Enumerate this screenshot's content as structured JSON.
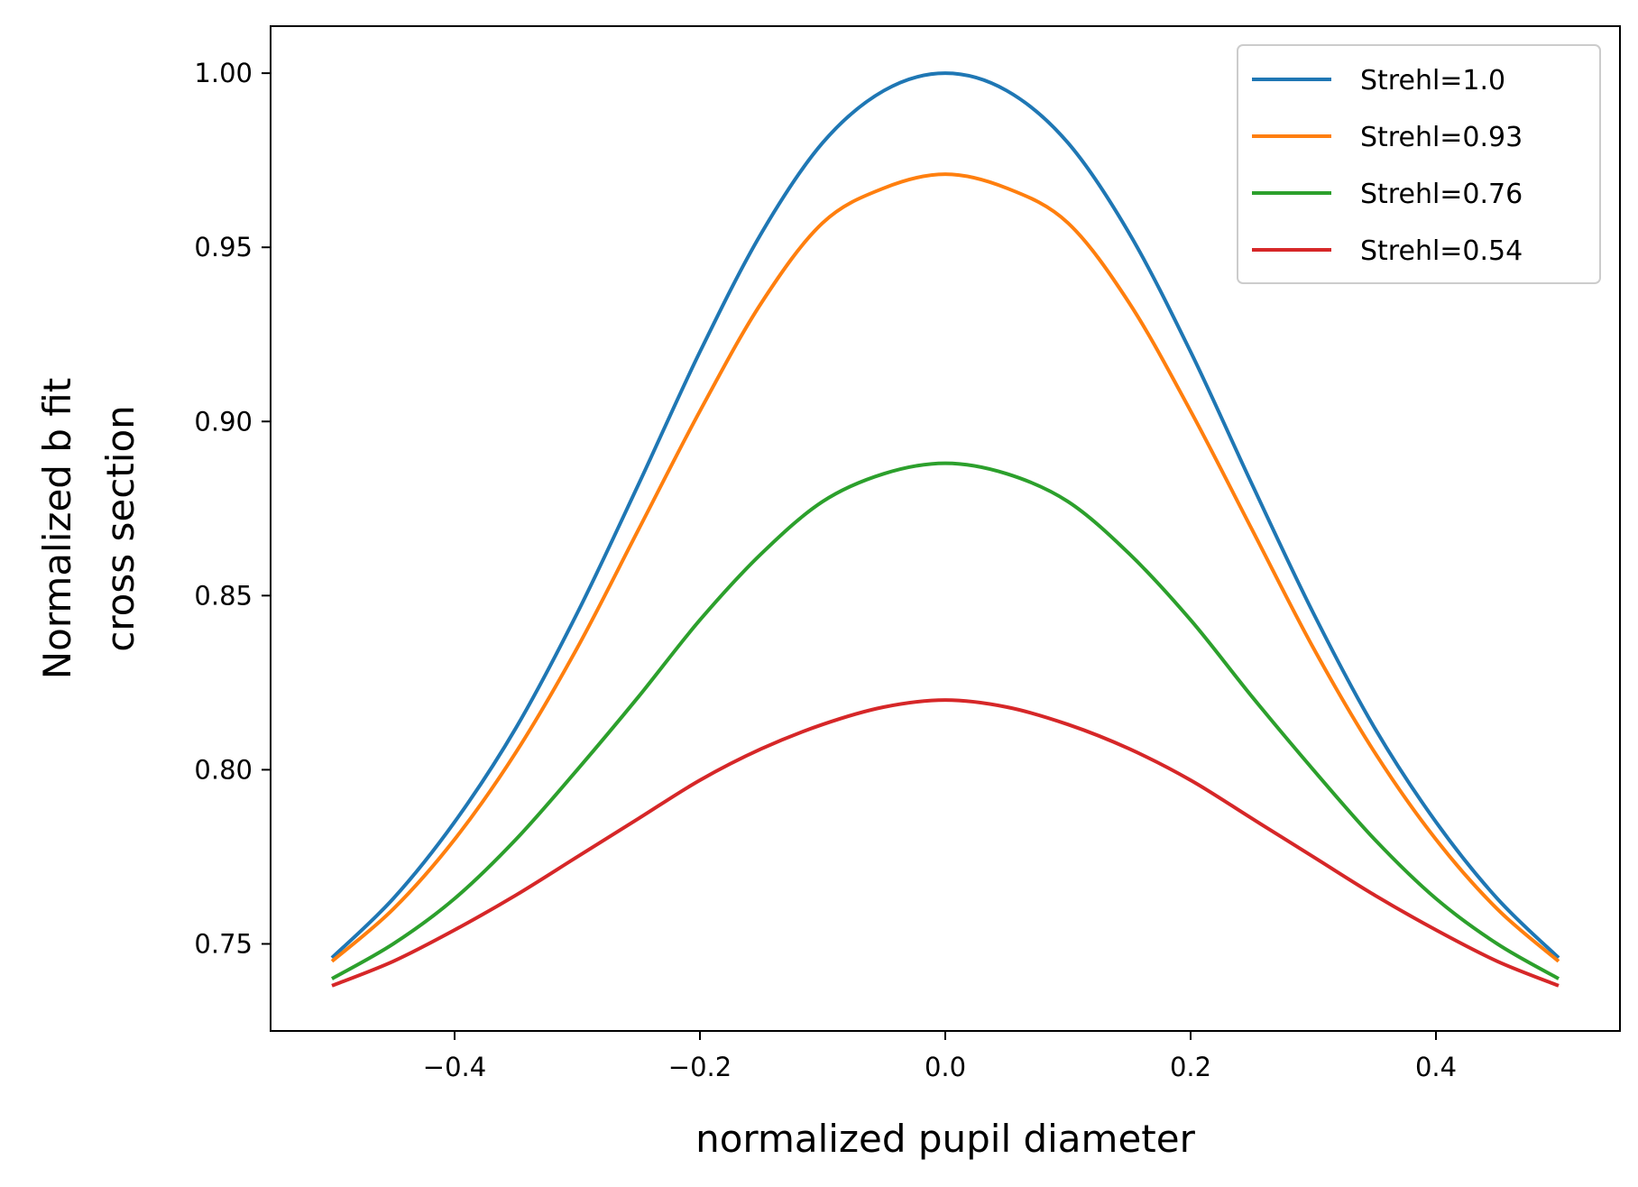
{
  "chart_data": {
    "type": "line",
    "title": "",
    "xlabel": "normalized pupil diameter",
    "ylabel_lines": [
      "Normalized b fit",
      "cross section"
    ],
    "xlim": [
      -0.55,
      0.55
    ],
    "ylim": [
      0.725,
      1.0135
    ],
    "x_ticks": [
      -0.4,
      -0.2,
      0.0,
      0.2,
      0.4
    ],
    "x_tick_labels": [
      "−0.4",
      "−0.2",
      "0.0",
      "0.2",
      "0.4"
    ],
    "y_ticks": [
      0.75,
      0.8,
      0.85,
      0.9,
      0.95,
      1.0
    ],
    "y_tick_labels": [
      "0.75",
      "0.80",
      "0.85",
      "0.90",
      "0.95",
      "1.00"
    ],
    "grid": false,
    "legend_position": "top-right",
    "x": [
      -0.5,
      -0.45,
      -0.4,
      -0.35,
      -0.3,
      -0.25,
      -0.2,
      -0.15,
      -0.1,
      -0.05,
      0.0,
      0.05,
      0.1,
      0.15,
      0.2,
      0.25,
      0.3,
      0.35,
      0.4,
      0.45,
      0.5
    ],
    "series": [
      {
        "name": "Strehl=1.0",
        "color": "#1f77b4",
        "values": [
          0.746,
          0.763,
          0.785,
          0.812,
          0.845,
          0.882,
          0.92,
          0.954,
          0.98,
          0.995,
          1.0,
          0.995,
          0.98,
          0.954,
          0.92,
          0.882,
          0.845,
          0.812,
          0.785,
          0.763,
          0.746
        ]
      },
      {
        "name": "Strehl=0.93",
        "color": "#ff7f0e",
        "values": [
          0.745,
          0.76,
          0.78,
          0.805,
          0.835,
          0.869,
          0.903,
          0.934,
          0.957,
          0.967,
          0.971,
          0.967,
          0.957,
          0.934,
          0.903,
          0.869,
          0.835,
          0.805,
          0.78,
          0.76,
          0.745
        ]
      },
      {
        "name": "Strehl=0.76",
        "color": "#2ca02c",
        "values": [
          0.74,
          0.75,
          0.763,
          0.78,
          0.8,
          0.821,
          0.843,
          0.862,
          0.877,
          0.885,
          0.888,
          0.885,
          0.877,
          0.862,
          0.843,
          0.821,
          0.8,
          0.78,
          0.763,
          0.75,
          0.74
        ]
      },
      {
        "name": "Strehl=0.54",
        "color": "#d62728",
        "values": [
          0.738,
          0.745,
          0.754,
          0.764,
          0.775,
          0.786,
          0.797,
          0.806,
          0.813,
          0.818,
          0.82,
          0.818,
          0.813,
          0.806,
          0.797,
          0.786,
          0.775,
          0.764,
          0.754,
          0.745,
          0.738
        ]
      }
    ]
  }
}
